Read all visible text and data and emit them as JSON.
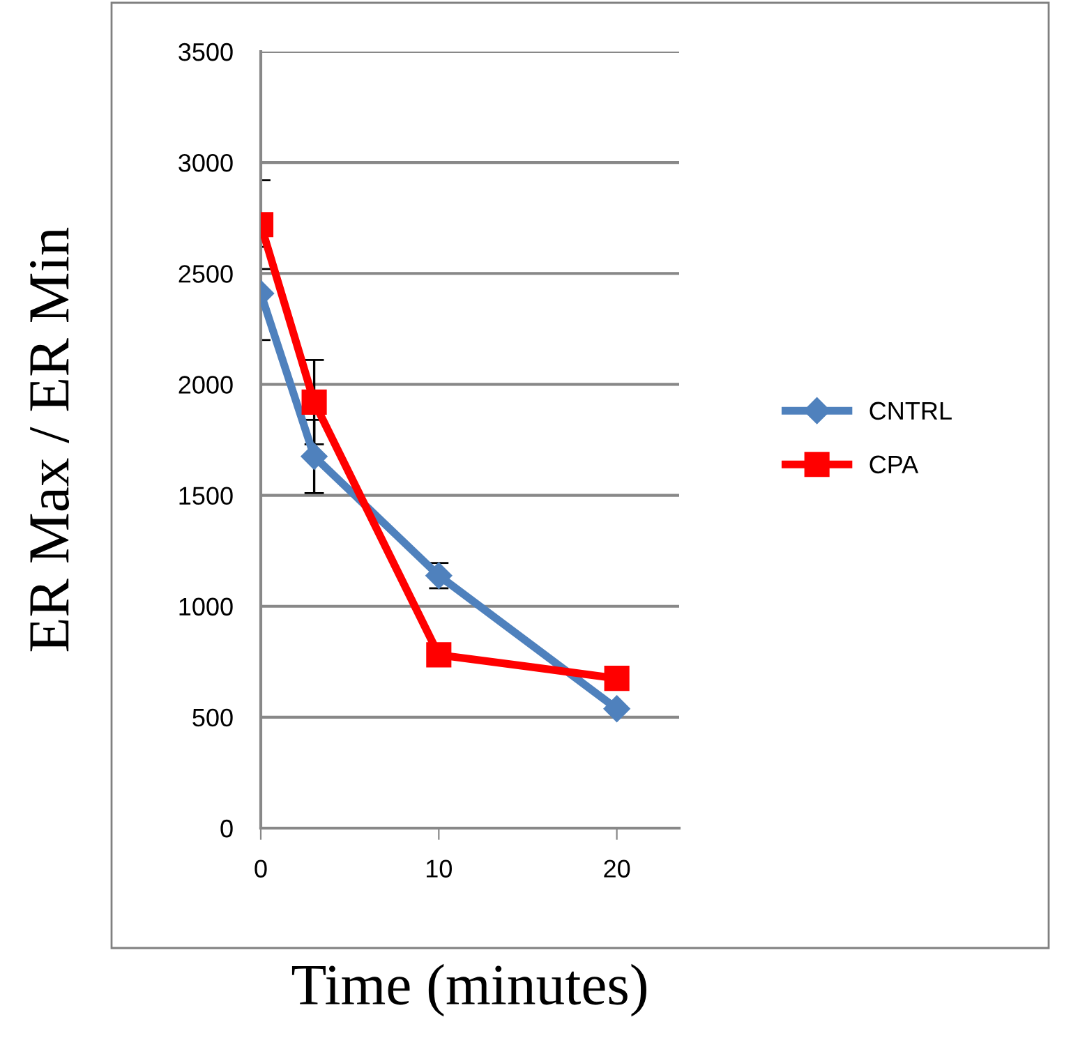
{
  "chart_data": {
    "type": "line",
    "xlabel": "Time (minutes)",
    "ylabel": "ER Max / ER Min",
    "x": [
      0,
      3,
      10,
      20
    ],
    "series": [
      {
        "name": "CNTRL",
        "color": "#4f81bd",
        "marker": "diamond",
        "values": [
          2410,
          1675,
          1138,
          538
        ],
        "errors": [
          210,
          165,
          57,
          null
        ]
      },
      {
        "name": "CPA",
        "color": "#ff0000",
        "marker": "square",
        "values": [
          2720,
          1920,
          781,
          675
        ],
        "errors": [
          200,
          190,
          null,
          null
        ]
      }
    ],
    "xlim": [
      0,
      23.5
    ],
    "xticks": [
      0,
      10,
      20
    ],
    "ylim": [
      0,
      3500
    ],
    "yticks": [
      0,
      500,
      1000,
      1500,
      2000,
      2500,
      3000,
      3500
    ],
    "grid": "y",
    "legend": "right",
    "line_style": "solid"
  }
}
